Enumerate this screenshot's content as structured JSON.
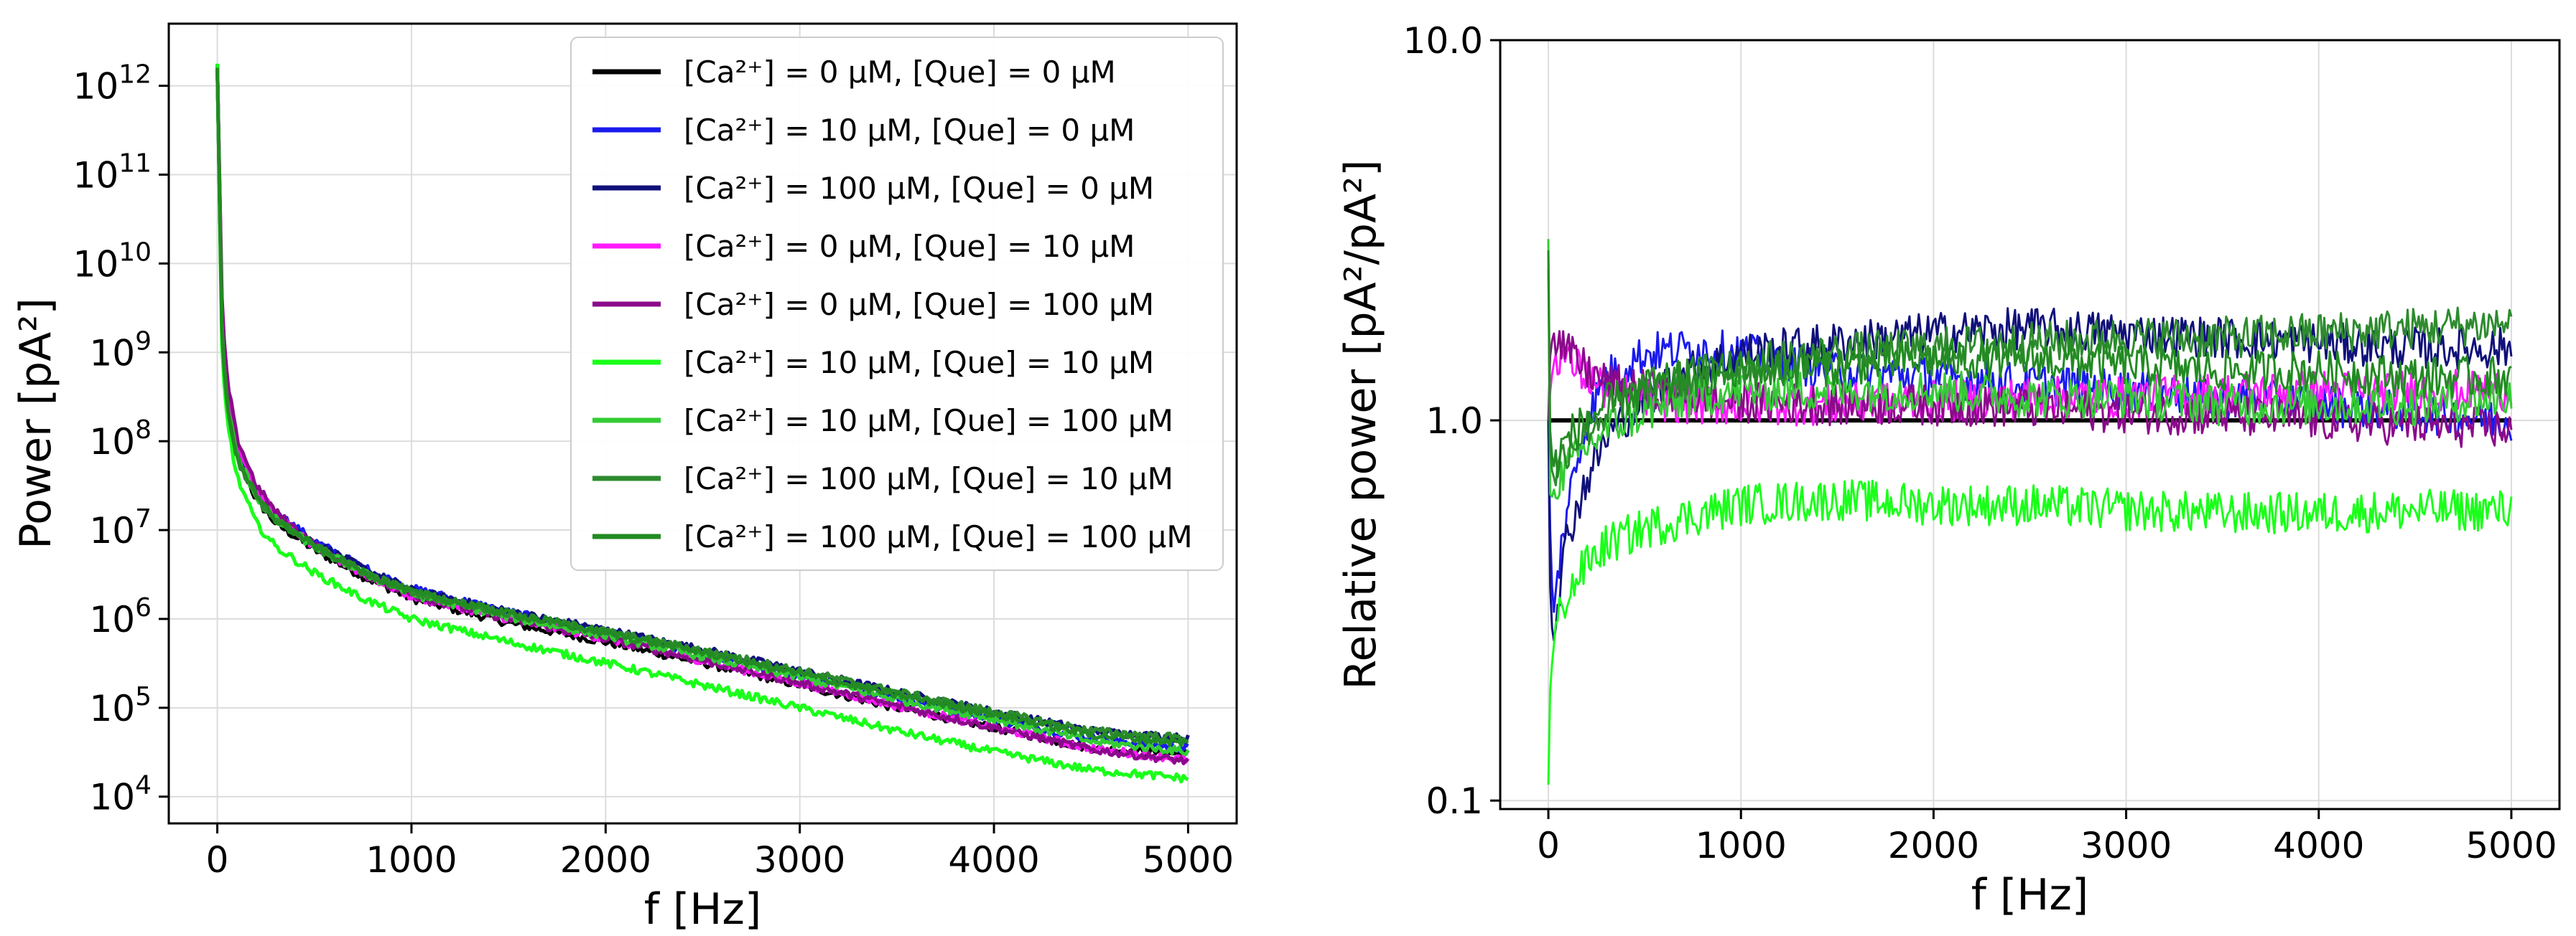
{
  "chart_data": [
    {
      "type": "line",
      "title": "",
      "xlabel": "f [Hz]",
      "ylabel": "Power [pA²]",
      "yscale": "log",
      "xlim": [
        -250,
        5250
      ],
      "ylim": [
        5000.0,
        5000000000000.0
      ],
      "grid": true,
      "legend_position": "top-right",
      "x_ticks": [
        0,
        1000,
        2000,
        3000,
        4000,
        5000
      ],
      "x_tick_labels": [
        "0",
        "1000",
        "2000",
        "3000",
        "4000",
        "5000"
      ],
      "y_ticks": [
        10000.0,
        100000.0,
        1000000.0,
        10000000.0,
        100000000.0,
        1000000000.0,
        10000000000.0,
        100000000000.0,
        1000000000000.0
      ],
      "y_tick_labels": [
        {
          "base": "10",
          "exp": "4"
        },
        {
          "base": "10",
          "exp": "5"
        },
        {
          "base": "10",
          "exp": "6"
        },
        {
          "base": "10",
          "exp": "7"
        },
        {
          "base": "10",
          "exp": "8"
        },
        {
          "base": "10",
          "exp": "9"
        },
        {
          "base": "10",
          "exp": "10"
        },
        {
          "base": "10",
          "exp": "11"
        },
        {
          "base": "10",
          "exp": "12"
        }
      ],
      "x": [
        0,
        25,
        50,
        100,
        200,
        300,
        500,
        750,
        1000,
        1500,
        2000,
        2500,
        3000,
        3500,
        4000,
        4500,
        5000
      ],
      "series": [
        {
          "name": "[Ca²⁺] = 0 μM, [Que] = 0 μM",
          "color": "#000000",
          "values": [
            1600000000000.0,
            1500000000.0,
            300000000.0,
            70000000.0,
            22000000.0,
            12000000.0,
            6000000.0,
            3000000.0,
            1700000.0,
            900000.0,
            550000.0,
            320000.0,
            180000.0,
            100000.0,
            60000.0,
            35000.0,
            30000.0
          ]
        },
        {
          "name": "[Ca²⁺] = 10 μM, [Que] = 0 μM",
          "color": "#1a1aee",
          "values": [
            1600000000000.0,
            1600000000.0,
            320000000.0,
            80000000.0,
            28000000.0,
            16000000.0,
            7500000.0,
            3800000.0,
            2200000.0,
            1200000.0,
            700000.0,
            400000.0,
            230000.0,
            130000.0,
            75000.0,
            45000.0,
            35000.0
          ]
        },
        {
          "name": "[Ca²⁺] = 100 μM, [Que] = 0 μM",
          "color": "#10107a",
          "values": [
            1600000000000.0,
            1600000000.0,
            310000000.0,
            78000000.0,
            27000000.0,
            15000000.0,
            7200000.0,
            3700000.0,
            2100000.0,
            1200000.0,
            750000.0,
            450000.0,
            260000.0,
            150000.0,
            90000.0,
            55000.0,
            45000.0
          ]
        },
        {
          "name": "[Ca²⁺] = 0 μM, [Que] = 10 μM",
          "color": "#ff1aff",
          "values": [
            1600000000000.0,
            2500000000.0,
            450000000.0,
            100000000.0,
            30000000.0,
            15000000.0,
            6500000.0,
            3200000.0,
            1800000.0,
            1000000.0,
            600000.0,
            340000.0,
            190000.0,
            105000.0,
            60000.0,
            35000.0,
            26000.0
          ]
        },
        {
          "name": "[Ca²⁺] = 0 μM, [Que] = 100 μM",
          "color": "#8b0a8b",
          "values": [
            1600000000000.0,
            2800000000.0,
            500000000.0,
            110000000.0,
            32000000.0,
            16000000.0,
            6800000.0,
            3300000.0,
            1850000.0,
            1000000.0,
            600000.0,
            340000.0,
            190000.0,
            105000.0,
            60000.0,
            34000.0,
            25000.0
          ]
        },
        {
          "name": "[Ca²⁺] = 10 μM, [Que] = 10 μM",
          "color": "#1aff1a",
          "values": [
            1600000000000.0,
            800000000.0,
            180000000.0,
            40000000.0,
            12000000.0,
            6500000.0,
            3300000.0,
            1700000.0,
            1000000.0,
            550000.0,
            320000.0,
            180000.0,
            100000.0,
            55000.0,
            32000.0,
            20000.0,
            16000.0
          ]
        },
        {
          "name": "[Ca²⁺] = 10 μM, [Que] = 100 μM",
          "color": "#33cc33",
          "values": [
            1600000000000.0,
            1400000000.0,
            280000000.0,
            70000000.0,
            24000000.0,
            13000000.0,
            6500000.0,
            3300000.0,
            1900000.0,
            1050000.0,
            650000.0,
            380000.0,
            220000.0,
            125000.0,
            75000.0,
            42000.0,
            32000.0
          ]
        },
        {
          "name": "[Ca²⁺] = 100 μM, [Que] = 10 μM",
          "color": "#2e8b2e",
          "values": [
            1600000000000.0,
            1300000000.0,
            260000000.0,
            65000000.0,
            23000000.0,
            13000000.0,
            6500000.0,
            3400000.0,
            2000000.0,
            1150000.0,
            720000.0,
            440000.0,
            260000.0,
            150000.0,
            90000.0,
            55000.0,
            45000.0
          ]
        },
        {
          "name": "[Ca²⁺] = 100 μM, [Que] = 100 μM",
          "color": "#228b22",
          "values": [
            1600000000000.0,
            1350000000.0,
            270000000.0,
            67000000.0,
            24000000.0,
            13000000.0,
            6600000.0,
            3400000.0,
            2000000.0,
            1150000.0,
            700000.0,
            420000.0,
            240000.0,
            140000.0,
            85000.0,
            50000.0,
            40000.0
          ]
        }
      ]
    },
    {
      "type": "line",
      "title": "",
      "xlabel": "f [Hz]",
      "ylabel": "Relative power [pA²/pA²]",
      "yscale": "log",
      "xlim": [
        -250,
        5250
      ],
      "ylim": [
        0.095,
        10.0
      ],
      "grid": true,
      "x_ticks": [
        0,
        1000,
        2000,
        3000,
        4000,
        5000
      ],
      "x_tick_labels": [
        "0",
        "1000",
        "2000",
        "3000",
        "4000",
        "5000"
      ],
      "y_ticks": [
        0.1,
        1.0,
        10.0
      ],
      "y_tick_labels": [
        "0.1",
        "1.0",
        "10.0"
      ],
      "x": [
        0,
        10,
        25,
        50,
        100,
        200,
        300,
        500,
        750,
        1000,
        1500,
        2000,
        2500,
        3000,
        3500,
        4000,
        4500,
        5000
      ],
      "series": [
        {
          "name": "[Ca²⁺] = 0 μM, [Que] = 0 μM",
          "color": "#000000",
          "values": [
            1.0,
            1.0,
            1.0,
            1.0,
            1.0,
            1.0,
            1.0,
            1.0,
            1.0,
            1.0,
            1.0,
            1.0,
            1.0,
            1.0,
            1.0,
            1.0,
            1.0,
            1.0
          ]
        },
        {
          "name": "[Ca²⁺] = 10 μM, [Que] = 0 μM",
          "color": "#1a1aee",
          "values": [
            1.0,
            0.5,
            0.3,
            0.4,
            0.6,
            1.0,
            1.3,
            1.5,
            1.55,
            1.5,
            1.35,
            1.3,
            1.25,
            1.2,
            1.15,
            1.1,
            1.05,
            1.0
          ]
        },
        {
          "name": "[Ca²⁺] = 100 μM, [Que] = 0 μM",
          "color": "#10107a",
          "values": [
            1.0,
            0.35,
            0.25,
            0.35,
            0.5,
            0.7,
            0.9,
            1.15,
            1.35,
            1.5,
            1.6,
            1.7,
            1.75,
            1.7,
            1.65,
            1.6,
            1.55,
            1.55
          ]
        },
        {
          "name": "[Ca²⁺] = 0 μM, [Que] = 10 μM",
          "color": "#ff1aff",
          "values": [
            1.0,
            1.2,
            1.4,
            1.5,
            1.45,
            1.3,
            1.2,
            1.15,
            1.1,
            1.1,
            1.1,
            1.12,
            1.15,
            1.15,
            1.18,
            1.2,
            1.2,
            1.2
          ]
        },
        {
          "name": "[Ca²⁺] = 0 μM, [Que] = 100 μM",
          "color": "#8b0a8b",
          "values": [
            1.0,
            1.5,
            1.7,
            1.65,
            1.5,
            1.35,
            1.25,
            1.2,
            1.15,
            1.12,
            1.1,
            1.1,
            1.08,
            1.05,
            1.03,
            1.0,
            0.97,
            0.95
          ]
        },
        {
          "name": "[Ca²⁺] = 10 μM, [Que] = 10 μM",
          "color": "#1aff1a",
          "values": [
            0.11,
            0.2,
            0.25,
            0.3,
            0.35,
            0.42,
            0.47,
            0.52,
            0.56,
            0.6,
            0.62,
            0.6,
            0.6,
            0.58,
            0.57,
            0.57,
            0.58,
            0.58
          ]
        },
        {
          "name": "[Ca²⁺] = 10 μM, [Que] = 100 μM",
          "color": "#33cc33",
          "values": [
            3.0,
            0.6,
            0.65,
            0.7,
            0.75,
            0.85,
            0.95,
            1.05,
            1.15,
            1.2,
            1.2,
            1.2,
            1.15,
            1.15,
            1.1,
            1.1,
            1.1,
            1.15
          ]
        },
        {
          "name": "[Ca²⁺] = 100 μM, [Que] = 10 μM",
          "color": "#2e8b2e",
          "values": [
            2.5,
            0.8,
            0.7,
            0.75,
            0.85,
            0.95,
            1.05,
            1.2,
            1.3,
            1.4,
            1.5,
            1.55,
            1.6,
            1.65,
            1.65,
            1.7,
            1.75,
            1.8
          ]
        },
        {
          "name": "[Ca²⁺] = 100 μM, [Que] = 100 μM",
          "color": "#228b22",
          "values": [
            2.8,
            0.9,
            0.75,
            0.8,
            0.9,
            1.0,
            1.1,
            1.2,
            1.3,
            1.35,
            1.4,
            1.45,
            1.45,
            1.4,
            1.35,
            1.35,
            1.3,
            1.3
          ]
        }
      ]
    }
  ]
}
